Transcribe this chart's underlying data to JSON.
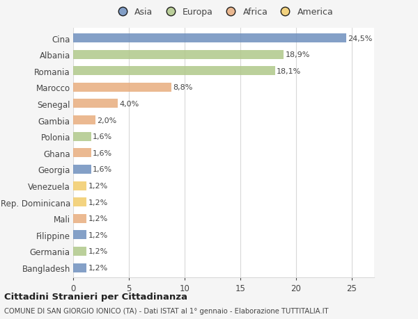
{
  "countries": [
    "Bangladesh",
    "Germania",
    "Filippine",
    "Mali",
    "Rep. Dominicana",
    "Venezuela",
    "Georgia",
    "Ghana",
    "Polonia",
    "Gambia",
    "Senegal",
    "Marocco",
    "Romania",
    "Albania",
    "Cina"
  ],
  "values": [
    1.2,
    1.2,
    1.2,
    1.2,
    1.2,
    1.2,
    1.6,
    1.6,
    1.6,
    2.0,
    4.0,
    8.8,
    18.1,
    18.9,
    24.5
  ],
  "labels": [
    "1,2%",
    "1,2%",
    "1,2%",
    "1,2%",
    "1,2%",
    "1,2%",
    "1,6%",
    "1,6%",
    "1,6%",
    "2,0%",
    "4,0%",
    "8,8%",
    "18,1%",
    "18,9%",
    "24,5%"
  ],
  "continents": [
    "Asia",
    "Europa",
    "Asia",
    "Africa",
    "America",
    "America",
    "Asia",
    "Africa",
    "Europa",
    "Africa",
    "Africa",
    "Africa",
    "Europa",
    "Europa",
    "Asia"
  ],
  "continent_colors": {
    "Asia": "#6e8fbe",
    "Europa": "#b0c88a",
    "Africa": "#e8ad7e",
    "America": "#f2cc6a"
  },
  "legend_order": [
    "Asia",
    "Europa",
    "Africa",
    "America"
  ],
  "title": "Cittadini Stranieri per Cittadinanza",
  "subtitle": "COMUNE DI SAN GIORGIO IONICO (TA) - Dati ISTAT al 1° gennaio - Elaborazione TUTTITALIA.IT",
  "xlim": [
    0,
    27
  ],
  "xticks": [
    0,
    5,
    10,
    15,
    20,
    25
  ],
  "background_color": "#f5f5f5",
  "plot_bg_color": "#ffffff",
  "grid_color": "#d8d8d8",
  "text_color": "#444444",
  "bar_height": 0.55
}
